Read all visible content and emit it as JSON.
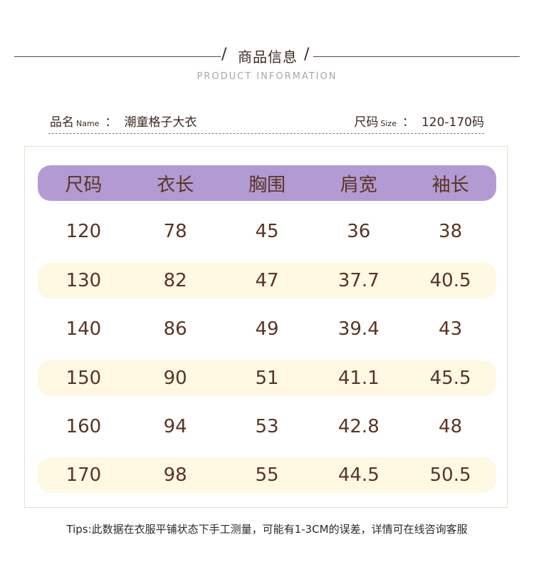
{
  "header": {
    "title": "商品信息",
    "subtitle": "PRODUCT INFORMATION"
  },
  "info": {
    "name_label": "品名",
    "name_label_en": "Name",
    "name_value": "潮童格子大衣",
    "size_label": "尺码",
    "size_label_en": "Size",
    "size_value": "120-170码",
    "colon": "："
  },
  "chart_data": {
    "type": "table",
    "columns": [
      "尺码",
      "衣长",
      "胸围",
      "肩宽",
      "袖长"
    ],
    "rows": [
      [
        "120",
        "78",
        "45",
        "36",
        "38"
      ],
      [
        "130",
        "82",
        "47",
        "37.7",
        "40.5"
      ],
      [
        "140",
        "86",
        "49",
        "39.4",
        "43"
      ],
      [
        "150",
        "90",
        "51",
        "41.1",
        "45.5"
      ],
      [
        "160",
        "94",
        "53",
        "42.8",
        "48"
      ],
      [
        "170",
        "98",
        "55",
        "44.5",
        "50.5"
      ]
    ]
  },
  "tips": "Tips:此数据在衣服平铺状态下手工测量，可能有1-3CM的误差，详情可在线咨询客服",
  "colors": {
    "header_row": "#b29bd2",
    "band_row": "#fff8e2",
    "text": "#5a3424"
  }
}
